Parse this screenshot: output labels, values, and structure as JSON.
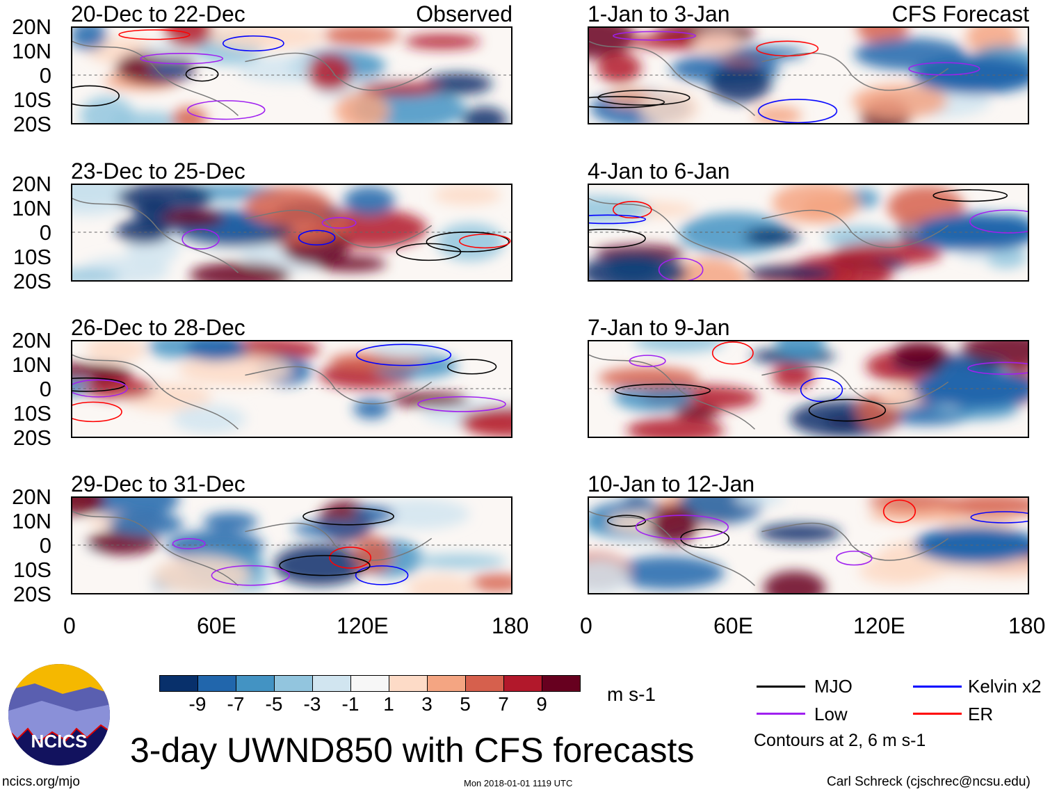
{
  "panels": {
    "left": [
      {
        "title": "20-Dec to 22-Dec",
        "tag": "Observed"
      },
      {
        "title": "23-Dec to 25-Dec"
      },
      {
        "title": "26-Dec to 28-Dec"
      },
      {
        "title": "29-Dec to 31-Dec"
      }
    ],
    "right": [
      {
        "title": "1-Jan to 3-Jan",
        "tag": "CFS Forecast"
      },
      {
        "title": "4-Jan to 6-Jan"
      },
      {
        "title": "7-Jan to 9-Jan"
      },
      {
        "title": "10-Jan to 12-Jan"
      }
    ]
  },
  "lat_labels": [
    "20N",
    "10N",
    "0",
    "10S",
    "20S"
  ],
  "lon_labels": [
    "0",
    "60E",
    "120E",
    "180"
  ],
  "colorbar": {
    "colors": [
      "#08306b",
      "#2166ac",
      "#4393c3",
      "#92c5de",
      "#d1e5f0",
      "#f7f7f7",
      "#fddbc7",
      "#f4a582",
      "#d6604d",
      "#b2182b",
      "#67001f"
    ],
    "labels": [
      "-9",
      "-7",
      "-5",
      "-3",
      "-1",
      "1",
      "3",
      "5",
      "7",
      "9"
    ],
    "units": "m s-1"
  },
  "legend": {
    "items": [
      {
        "label": "MJO",
        "color": "#000000"
      },
      {
        "label": "Kelvin x2",
        "color": "#0000ff"
      },
      {
        "label": "Low",
        "color": "#a020f0"
      },
      {
        "label": "ER",
        "color": "#ff0000"
      }
    ],
    "note": "Contours at 2, 6 m s-1"
  },
  "title": "3-day UWND850 with CFS forecasts",
  "logo_text": "NCICS",
  "footer": {
    "url": "ncics.org/mjo",
    "timestamp": "Mon 2018-01-01 1119 UTC",
    "author": "Carl Schreck (cjschrec@ncsu.edu)"
  }
}
